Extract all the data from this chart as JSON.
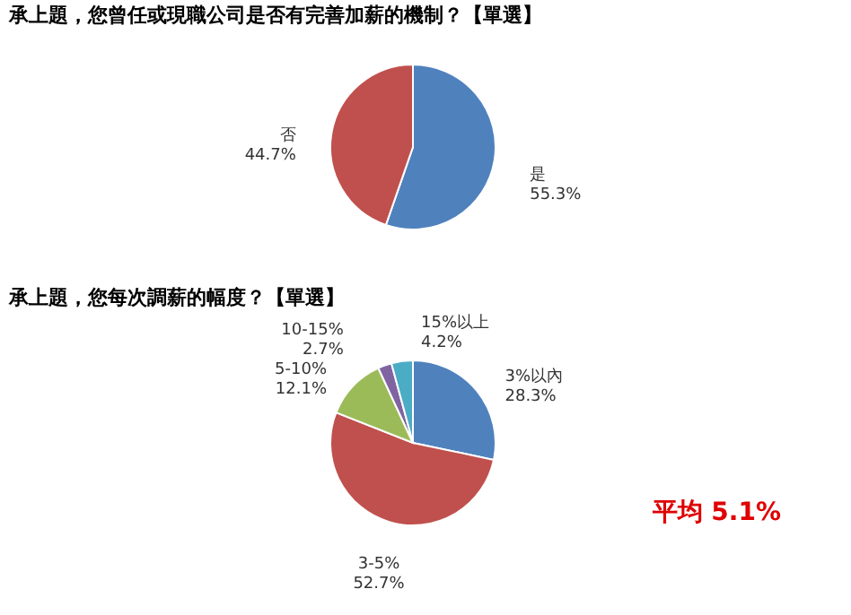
{
  "chart_data": [
    {
      "type": "pie",
      "title": "承上題，您曾任或現職公司是否有完善加薪的機制？【單選】",
      "categories": [
        "是",
        "否"
      ],
      "values": [
        55.3,
        44.7
      ],
      "colors": [
        "#4f81bd",
        "#c0504d"
      ],
      "value_labels": [
        "55.3%",
        "44.7%"
      ]
    },
    {
      "type": "pie",
      "title": "承上題，您每次調薪的幅度？【單選】",
      "categories": [
        "3%以內",
        "3-5%",
        "5-10%",
        "10-15%",
        "15%以上"
      ],
      "values": [
        28.3,
        52.7,
        12.1,
        2.7,
        4.2
      ],
      "colors": [
        "#4f81bd",
        "#c0504d",
        "#9bbb59",
        "#8064a2",
        "#4bacc6"
      ],
      "value_labels": [
        "28.3%",
        "52.7%",
        "12.1%",
        "2.7%",
        "4.2%"
      ],
      "annotations": [
        "平均 5.1%"
      ]
    }
  ]
}
